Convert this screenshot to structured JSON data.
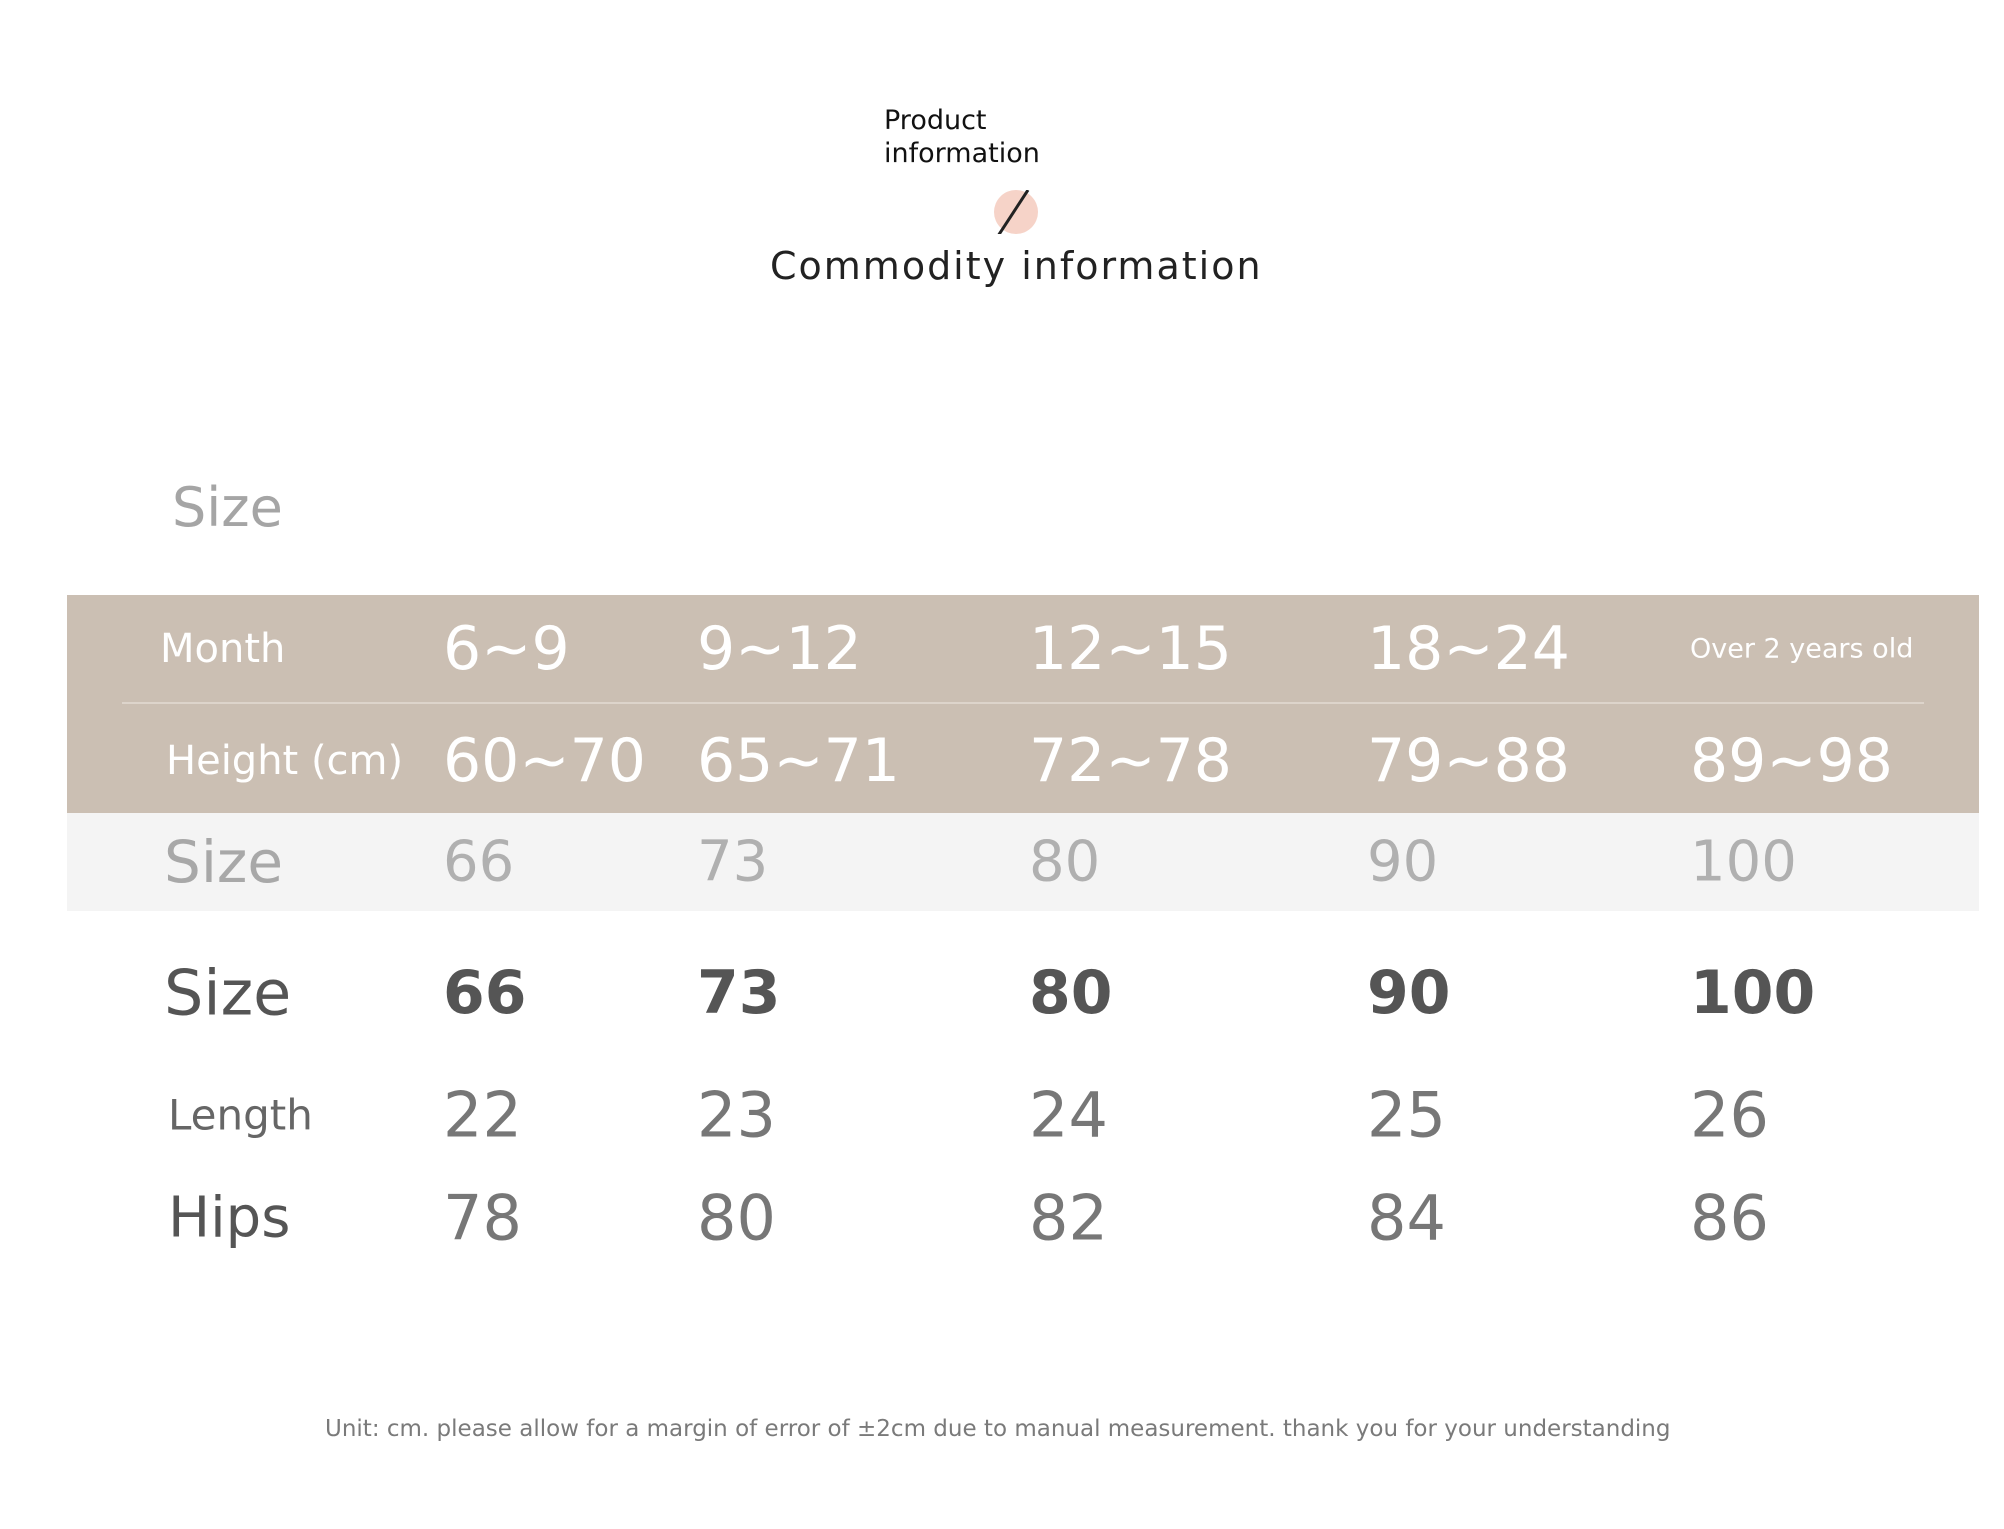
{
  "header": {
    "product_info": "Product information",
    "commodity_info": "Commodity information"
  },
  "size_title": "Size",
  "table": {
    "header_rows": [
      [
        "Month",
        "6~9",
        "9~12",
        "12~15",
        "18~24",
        "Over 2 years old"
      ],
      [
        "Height (cm)",
        "60~70",
        "65~71",
        "72~78",
        "79~88",
        "89~98"
      ]
    ],
    "rows": [
      [
        "Size",
        "66",
        "73",
        "80",
        "90",
        "100"
      ],
      [
        "Size",
        "66",
        "73",
        "80",
        "90",
        "100"
      ],
      [
        "Length",
        "22",
        "23",
        "24",
        "25",
        "26"
      ],
      [
        "Hips",
        "78",
        "80",
        "82",
        "84",
        "86"
      ]
    ]
  },
  "footnote": "Unit: cm. please allow for a margin of error of ±2cm due to manual measurement. thank you for your understanding"
}
